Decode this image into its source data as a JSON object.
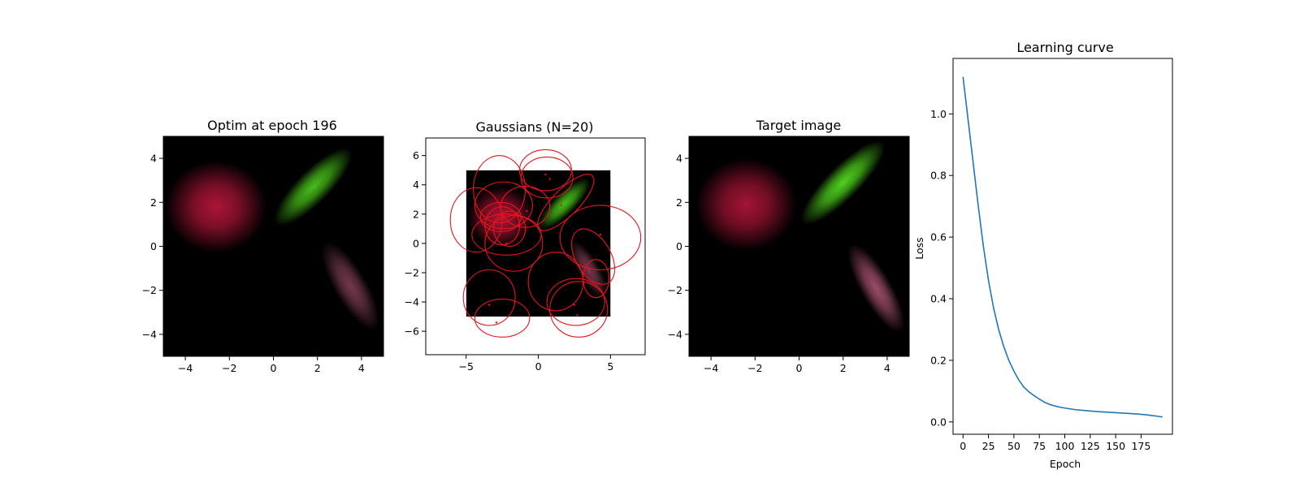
{
  "panels": {
    "optim": {
      "title": "Optim at epoch 196"
    },
    "gaussians": {
      "title": "Gaussians (N=20)"
    },
    "target": {
      "title": "Target image"
    },
    "curve": {
      "title": "Learning curve",
      "xlabel": "Epoch",
      "ylabel": "Loss"
    }
  },
  "colors": {
    "red_blob": "#b5163a",
    "green_blob": "#4fd11d",
    "pink_blob": "#a4506e",
    "ellipse": "#e8141c",
    "curve": "#1f77b4"
  },
  "chart_data": [
    {
      "type": "heatmap",
      "name": "optim",
      "title": "Optim at epoch 196",
      "xlim": [
        -5,
        5
      ],
      "ylim": [
        -5,
        5
      ],
      "xticks": [
        -4,
        -2,
        0,
        2,
        4
      ],
      "yticks": [
        -4,
        -2,
        0,
        2,
        4
      ],
      "blobs": [
        {
          "cx": -2.6,
          "cy": 1.8,
          "rx": 2.3,
          "ry": 2.1,
          "rot": 0,
          "color": "#b5163a",
          "alpha": 0.95
        },
        {
          "cx": 1.8,
          "cy": 2.7,
          "rx": 2.4,
          "ry": 0.75,
          "rot": 45,
          "color": "#4fd11d",
          "alpha": 0.9
        },
        {
          "cx": 3.5,
          "cy": -1.8,
          "rx": 2.3,
          "ry": 0.75,
          "rot": -60,
          "color": "#a4506e",
          "alpha": 0.7
        }
      ]
    },
    {
      "type": "scatter",
      "name": "gaussians",
      "title": "Gaussians (N=20)",
      "xlim": [
        -7.8,
        7.4
      ],
      "ylim": [
        -7.6,
        7.2
      ],
      "xticks": [
        -5,
        0,
        5
      ],
      "yticks": [
        -6,
        -4,
        -2,
        0,
        2,
        4,
        6
      ],
      "ellipses": [
        {
          "cx": -2.7,
          "cy": 3.7,
          "rx": 1.8,
          "ry": 2.3,
          "rot": 0
        },
        {
          "cx": -2.4,
          "cy": 2.6,
          "rx": 2.0,
          "ry": 1.6,
          "rot": 0
        },
        {
          "cx": -4.3,
          "cy": 1.6,
          "rx": 1.8,
          "ry": 2.2,
          "rot": 0
        },
        {
          "cx": -2.2,
          "cy": 0.6,
          "rx": 2.4,
          "ry": 1.4,
          "rot": 0
        },
        {
          "cx": -2.5,
          "cy": 1.2,
          "rx": 1.2,
          "ry": 1.3,
          "rot": 0
        },
        {
          "cx": -2.0,
          "cy": 1.0,
          "rx": 1.1,
          "ry": 1.2,
          "rot": 0
        },
        {
          "cx": -2.6,
          "cy": 1.8,
          "rx": 1.4,
          "ry": 1.0,
          "rot": 0
        },
        {
          "cx": -1.7,
          "cy": 0.0,
          "rx": 2.0,
          "ry": 1.9,
          "rot": 0
        },
        {
          "cx": -0.9,
          "cy": 2.5,
          "rx": 1.7,
          "ry": 1.4,
          "rot": 0
        },
        {
          "cx": 0.5,
          "cy": 5.0,
          "rx": 1.8,
          "ry": 1.4,
          "rot": 0
        },
        {
          "cx": 0.6,
          "cy": 4.5,
          "rx": 1.8,
          "ry": 1.4,
          "rot": 0
        },
        {
          "cx": 1.9,
          "cy": 2.8,
          "rx": 2.6,
          "ry": 0.9,
          "rot": 45
        },
        {
          "cx": 4.3,
          "cy": 0.4,
          "rx": 2.8,
          "ry": 2.2,
          "rot": 0
        },
        {
          "cx": 3.8,
          "cy": -0.9,
          "rx": 2.1,
          "ry": 1.2,
          "rot": -60
        },
        {
          "cx": 4.0,
          "cy": -2.4,
          "rx": 0.9,
          "ry": 1.3,
          "rot": 0
        },
        {
          "cx": 1.2,
          "cy": -2.6,
          "rx": 1.9,
          "ry": 2.0,
          "rot": 0
        },
        {
          "cx": 2.8,
          "cy": -4.5,
          "rx": 2.0,
          "ry": 1.9,
          "rot": 0
        },
        {
          "cx": 2.6,
          "cy": -4.0,
          "rx": 2.0,
          "ry": 1.6,
          "rot": 0
        },
        {
          "cx": -3.4,
          "cy": -3.7,
          "rx": 1.8,
          "ry": 1.9,
          "rot": 0
        },
        {
          "cx": -2.5,
          "cy": -5.1,
          "rx": 1.9,
          "ry": 1.3,
          "rot": 0
        }
      ],
      "centers": [
        [
          0.5,
          4.7
        ],
        [
          0.8,
          4.4
        ],
        [
          1.6,
          2.6
        ],
        [
          -0.8,
          2.2
        ],
        [
          -2.2,
          0.0
        ],
        [
          4.3,
          0.6
        ],
        [
          -3.4,
          -4.2
        ],
        [
          2.5,
          -4.2
        ],
        [
          2.7,
          -4.9
        ],
        [
          -2.9,
          -5.4
        ]
      ]
    },
    {
      "type": "heatmap",
      "name": "target",
      "title": "Target image",
      "xlim": [
        -5,
        5
      ],
      "ylim": [
        -5,
        5
      ],
      "xticks": [
        -4,
        -2,
        0,
        2,
        4
      ],
      "yticks": [
        -4,
        -2,
        0,
        2,
        4
      ],
      "blobs": [
        {
          "cx": -2.4,
          "cy": 1.9,
          "rx": 2.3,
          "ry": 2.1,
          "rot": 0,
          "color": "#b5163a",
          "alpha": 0.9
        },
        {
          "cx": 2.0,
          "cy": 2.9,
          "rx": 2.6,
          "ry": 0.75,
          "rot": 45,
          "color": "#4fd11d",
          "alpha": 1.0
        },
        {
          "cx": 3.5,
          "cy": -1.9,
          "rx": 2.3,
          "ry": 0.7,
          "rot": -60,
          "color": "#a4506e",
          "alpha": 0.95
        }
      ]
    },
    {
      "type": "line",
      "name": "curve",
      "title": "Learning curve",
      "xlabel": "Epoch",
      "ylabel": "Loss",
      "xlim": [
        -9.8,
        205.8
      ],
      "ylim": [
        -0.04,
        1.18
      ],
      "xticks": [
        0,
        25,
        50,
        75,
        100,
        125,
        150,
        175
      ],
      "yticks": [
        0.0,
        0.2,
        0.4,
        0.6,
        0.8,
        1.0
      ],
      "ytick_labels": [
        "0.0",
        "0.2",
        "0.4",
        "0.6",
        "0.8",
        "1.0"
      ],
      "x": [
        0,
        5,
        10,
        15,
        20,
        25,
        30,
        35,
        40,
        45,
        50,
        55,
        60,
        65,
        70,
        75,
        80,
        85,
        90,
        95,
        100,
        110,
        120,
        130,
        140,
        150,
        160,
        170,
        180,
        190,
        196
      ],
      "values": [
        1.12,
        0.98,
        0.84,
        0.7,
        0.57,
        0.46,
        0.37,
        0.3,
        0.245,
        0.2,
        0.165,
        0.135,
        0.112,
        0.097,
        0.085,
        0.074,
        0.064,
        0.057,
        0.052,
        0.048,
        0.045,
        0.04,
        0.037,
        0.034,
        0.032,
        0.03,
        0.028,
        0.026,
        0.023,
        0.019,
        0.016
      ]
    }
  ]
}
